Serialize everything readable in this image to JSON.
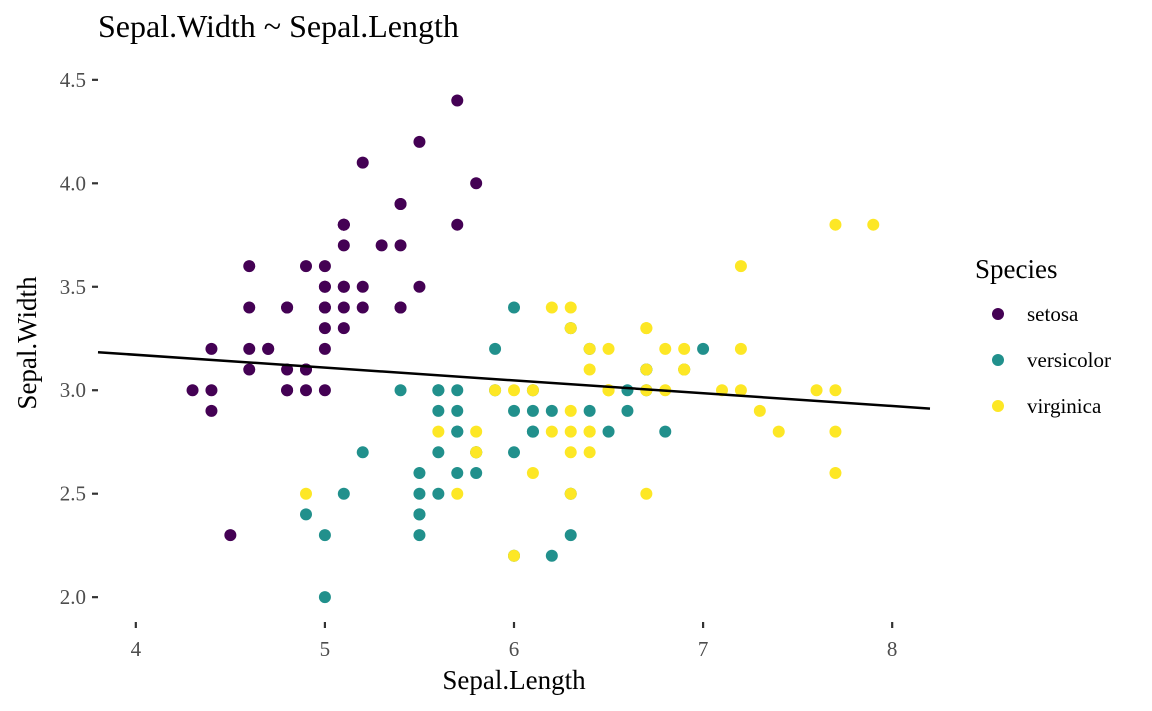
{
  "chart_data": {
    "type": "scatter",
    "title": "Sepal.Width ~ Sepal.Length",
    "xlabel": "Sepal.Length",
    "ylabel": "Sepal.Width",
    "xlim": [
      3.8,
      8.2
    ],
    "ylim": [
      1.88,
      4.62
    ],
    "x_ticks": [
      4,
      5,
      6,
      7,
      8
    ],
    "y_ticks": [
      2.0,
      2.5,
      3.0,
      3.5,
      4.0,
      4.5
    ],
    "x_tick_labels": [
      "4",
      "5",
      "6",
      "7",
      "8"
    ],
    "y_tick_labels": [
      "2.0",
      "2.5",
      "3.0",
      "3.5",
      "4.0",
      "4.5"
    ],
    "grid": false,
    "legend": {
      "title": "Species",
      "position": "right"
    },
    "fit_line": {
      "intercept": 3.4189,
      "slope": -0.0619,
      "color": "#000000"
    },
    "series": [
      {
        "name": "setosa",
        "color": "#440154",
        "points": [
          [
            5.1,
            3.5
          ],
          [
            4.9,
            3.0
          ],
          [
            4.7,
            3.2
          ],
          [
            4.6,
            3.1
          ],
          [
            5.0,
            3.6
          ],
          [
            5.4,
            3.9
          ],
          [
            4.6,
            3.4
          ],
          [
            5.0,
            3.4
          ],
          [
            4.4,
            2.9
          ],
          [
            4.9,
            3.1
          ],
          [
            5.4,
            3.7
          ],
          [
            4.8,
            3.4
          ],
          [
            4.8,
            3.0
          ],
          [
            4.3,
            3.0
          ],
          [
            5.8,
            4.0
          ],
          [
            5.7,
            4.4
          ],
          [
            5.4,
            3.9
          ],
          [
            5.1,
            3.5
          ],
          [
            5.7,
            3.8
          ],
          [
            5.1,
            3.8
          ],
          [
            5.4,
            3.4
          ],
          [
            5.1,
            3.7
          ],
          [
            4.6,
            3.6
          ],
          [
            5.1,
            3.3
          ],
          [
            4.8,
            3.4
          ],
          [
            5.0,
            3.0
          ],
          [
            5.0,
            3.4
          ],
          [
            5.2,
            3.5
          ],
          [
            5.2,
            3.4
          ],
          [
            4.7,
            3.2
          ],
          [
            4.8,
            3.1
          ],
          [
            5.4,
            3.4
          ],
          [
            5.2,
            4.1
          ],
          [
            5.5,
            4.2
          ],
          [
            4.9,
            3.1
          ],
          [
            5.0,
            3.2
          ],
          [
            5.5,
            3.5
          ],
          [
            4.9,
            3.6
          ],
          [
            4.4,
            3.0
          ],
          [
            5.1,
            3.4
          ],
          [
            5.0,
            3.5
          ],
          [
            4.5,
            2.3
          ],
          [
            4.4,
            3.2
          ],
          [
            5.0,
            3.5
          ],
          [
            5.1,
            3.8
          ],
          [
            4.8,
            3.0
          ],
          [
            5.1,
            3.8
          ],
          [
            4.6,
            3.2
          ],
          [
            5.3,
            3.7
          ],
          [
            5.0,
            3.3
          ]
        ]
      },
      {
        "name": "versicolor",
        "color": "#21908C",
        "points": [
          [
            7.0,
            3.2
          ],
          [
            6.4,
            3.2
          ],
          [
            6.9,
            3.1
          ],
          [
            5.5,
            2.3
          ],
          [
            6.5,
            2.8
          ],
          [
            5.7,
            2.8
          ],
          [
            6.3,
            3.3
          ],
          [
            4.9,
            2.4
          ],
          [
            6.6,
            2.9
          ],
          [
            5.2,
            2.7
          ],
          [
            5.0,
            2.0
          ],
          [
            5.9,
            3.0
          ],
          [
            6.0,
            2.2
          ],
          [
            6.1,
            2.9
          ],
          [
            5.6,
            2.9
          ],
          [
            6.7,
            3.1
          ],
          [
            5.6,
            3.0
          ],
          [
            5.8,
            2.7
          ],
          [
            6.2,
            2.2
          ],
          [
            5.6,
            2.5
          ],
          [
            5.9,
            3.2
          ],
          [
            6.1,
            2.8
          ],
          [
            6.3,
            2.5
          ],
          [
            6.1,
            2.8
          ],
          [
            6.4,
            2.9
          ],
          [
            6.6,
            3.0
          ],
          [
            6.8,
            2.8
          ],
          [
            6.7,
            3.0
          ],
          [
            6.0,
            2.9
          ],
          [
            5.7,
            2.6
          ],
          [
            5.5,
            2.4
          ],
          [
            5.5,
            2.4
          ],
          [
            5.8,
            2.7
          ],
          [
            6.0,
            2.7
          ],
          [
            5.4,
            3.0
          ],
          [
            6.0,
            3.4
          ],
          [
            6.7,
            3.1
          ],
          [
            6.3,
            2.3
          ],
          [
            5.6,
            3.0
          ],
          [
            5.5,
            2.5
          ],
          [
            5.5,
            2.6
          ],
          [
            6.1,
            3.0
          ],
          [
            5.8,
            2.6
          ],
          [
            5.0,
            2.3
          ],
          [
            5.6,
            2.7
          ],
          [
            5.7,
            3.0
          ],
          [
            5.7,
            2.9
          ],
          [
            6.2,
            2.9
          ],
          [
            5.1,
            2.5
          ],
          [
            5.7,
            2.8
          ]
        ]
      },
      {
        "name": "virginica",
        "color": "#FDE725",
        "points": [
          [
            6.3,
            3.3
          ],
          [
            5.8,
            2.7
          ],
          [
            7.1,
            3.0
          ],
          [
            6.3,
            2.9
          ],
          [
            6.5,
            3.0
          ],
          [
            7.6,
            3.0
          ],
          [
            4.9,
            2.5
          ],
          [
            7.3,
            2.9
          ],
          [
            6.7,
            2.5
          ],
          [
            7.2,
            3.6
          ],
          [
            6.5,
            3.2
          ],
          [
            6.4,
            2.7
          ],
          [
            6.8,
            3.0
          ],
          [
            5.7,
            2.5
          ],
          [
            5.8,
            2.8
          ],
          [
            6.4,
            3.2
          ],
          [
            6.5,
            3.0
          ],
          [
            7.7,
            3.8
          ],
          [
            7.7,
            2.6
          ],
          [
            6.0,
            2.2
          ],
          [
            6.9,
            3.2
          ],
          [
            5.6,
            2.8
          ],
          [
            7.7,
            2.8
          ],
          [
            6.3,
            2.7
          ],
          [
            6.7,
            3.3
          ],
          [
            7.2,
            3.2
          ],
          [
            6.2,
            2.8
          ],
          [
            6.1,
            3.0
          ],
          [
            6.4,
            2.8
          ],
          [
            7.2,
            3.0
          ],
          [
            7.4,
            2.8
          ],
          [
            7.9,
            3.8
          ],
          [
            6.4,
            2.8
          ],
          [
            6.3,
            2.8
          ],
          [
            6.1,
            2.6
          ],
          [
            7.7,
            3.0
          ],
          [
            6.3,
            3.4
          ],
          [
            6.4,
            3.1
          ],
          [
            6.0,
            3.0
          ],
          [
            6.9,
            3.1
          ],
          [
            6.7,
            3.1
          ],
          [
            6.9,
            3.1
          ],
          [
            5.8,
            2.7
          ],
          [
            6.8,
            3.2
          ],
          [
            6.7,
            3.3
          ],
          [
            6.7,
            3.0
          ],
          [
            6.3,
            2.5
          ],
          [
            6.5,
            3.0
          ],
          [
            6.2,
            3.4
          ],
          [
            5.9,
            3.0
          ]
        ]
      }
    ]
  }
}
